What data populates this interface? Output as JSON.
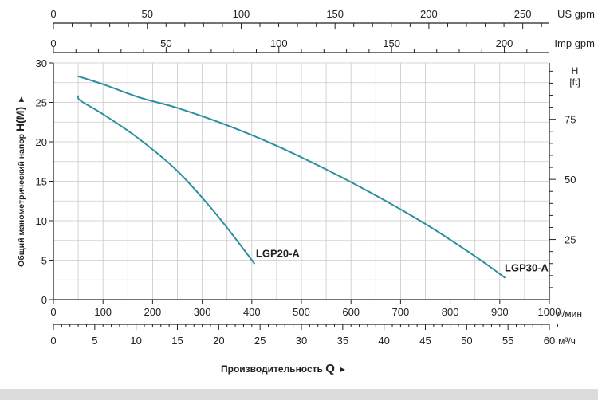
{
  "chart_data": {
    "type": "line",
    "x_unit": "л/мин",
    "y_unit": "H(M)",
    "xlim": [
      0,
      1000
    ],
    "ylim": [
      0,
      30
    ],
    "x_ticks": [
      0,
      100,
      200,
      300,
      400,
      500,
      600,
      700,
      800,
      900,
      1000
    ],
    "y_ticks": [
      0,
      5,
      10,
      15,
      20,
      25,
      30
    ],
    "ylabel_text": "Общий манометрический напор",
    "ylabel_symbol": "H(M)",
    "ylabel_arrow": "►",
    "xlabel_text": "Производительность",
    "xlabel_symbol": "Q",
    "xlabel_arrow": "►",
    "grid": true,
    "secondary_axes": {
      "us_gpm": {
        "label": "US gpm",
        "ticks": [
          0,
          50,
          100,
          150,
          200,
          250
        ],
        "max": 264.17
      },
      "imp_gpm": {
        "label": "Imp gpm",
        "ticks": [
          0,
          50,
          100,
          150,
          200
        ],
        "max": 219.97
      },
      "m3h": {
        "label": "м³/ч",
        "ticks": [
          0,
          5,
          10,
          15,
          20,
          25,
          30,
          35,
          40,
          45,
          50,
          55,
          60
        ],
        "max": 60
      },
      "ft": {
        "label_top": "H",
        "label_bottom": "[ft]",
        "ticks": [
          25,
          50,
          75
        ],
        "max": 98.43
      }
    },
    "series": [
      {
        "name": "LGP20-A",
        "x": [
          50,
          55,
          100,
          170,
          250,
          330,
          405
        ],
        "y": [
          25.8,
          25.2,
          23.5,
          20.5,
          16.3,
          10.7,
          4.6
        ]
      },
      {
        "name": "LGP30-A",
        "x": [
          50,
          100,
          175,
          250,
          350,
          450,
          550,
          650,
          750,
          850,
          910
        ],
        "y": [
          28.3,
          27.3,
          25.6,
          24.3,
          22.1,
          19.5,
          16.5,
          13.2,
          9.6,
          5.5,
          2.8
        ]
      }
    ]
  }
}
